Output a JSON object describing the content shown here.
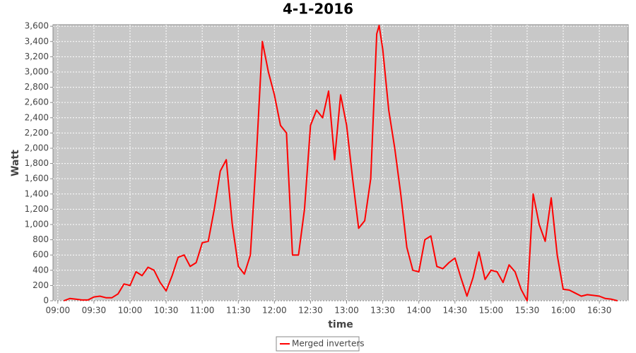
{
  "chart_data": {
    "type": "line",
    "title": "4-1-2016",
    "x_label": "time",
    "y_label": "Watt",
    "x": [
      "09:05",
      "09:10",
      "09:15",
      "09:20",
      "09:25",
      "09:30",
      "09:35",
      "09:40",
      "09:45",
      "09:50",
      "09:55",
      "10:00",
      "10:05",
      "10:10",
      "10:15",
      "10:20",
      "10:25",
      "10:30",
      "10:35",
      "10:40",
      "10:45",
      "10:50",
      "10:55",
      "11:00",
      "11:05",
      "11:10",
      "11:15",
      "11:20",
      "11:25",
      "11:30",
      "11:35",
      "11:40",
      "11:45",
      "11:50",
      "11:55",
      "12:00",
      "12:05",
      "12:10",
      "12:15",
      "12:20",
      "12:25",
      "12:30",
      "12:35",
      "12:40",
      "12:45",
      "12:50",
      "12:55",
      "13:00",
      "13:05",
      "13:10",
      "13:15",
      "13:20",
      "13:25",
      "13:27",
      "13:30",
      "13:35",
      "13:40",
      "13:45",
      "13:50",
      "13:55",
      "14:00",
      "14:05",
      "14:10",
      "14:15",
      "14:20",
      "14:25",
      "14:30",
      "14:35",
      "14:40",
      "14:45",
      "14:50",
      "14:55",
      "15:00",
      "15:05",
      "15:10",
      "15:15",
      "15:20",
      "15:25",
      "15:30",
      "15:35",
      "15:40",
      "15:45",
      "15:50",
      "15:55",
      "16:00",
      "16:05",
      "16:10",
      "16:15",
      "16:20",
      "16:25",
      "16:30",
      "16:35",
      "16:40",
      "16:45"
    ],
    "series": [
      {
        "name": "Merged inverters",
        "color": "#ff0000",
        "values": [
          0,
          30,
          20,
          10,
          10,
          50,
          60,
          40,
          40,
          90,
          220,
          200,
          380,
          330,
          440,
          400,
          240,
          130,
          330,
          570,
          600,
          450,
          500,
          760,
          780,
          1200,
          1700,
          1850,
          1000,
          450,
          350,
          600,
          1900,
          3400,
          3000,
          2700,
          2300,
          2200,
          600,
          600,
          1200,
          2300,
          2500,
          2400,
          2750,
          1850,
          2700,
          2300,
          1600,
          950,
          1050,
          1600,
          3500,
          3610,
          3300,
          2500,
          2000,
          1400,
          700,
          400,
          380,
          800,
          850,
          450,
          420,
          500,
          560,
          300,
          60,
          300,
          640,
          280,
          400,
          380,
          240,
          470,
          380,
          150,
          0,
          1400,
          1000,
          780,
          1350,
          600,
          150,
          140,
          100,
          60,
          80,
          70,
          60,
          30,
          20,
          0
        ]
      }
    ],
    "xlim": [
      "08:56",
      "16:54"
    ],
    "xticks": [
      "09:00",
      "09:30",
      "10:00",
      "10:30",
      "11:00",
      "11:30",
      "12:00",
      "12:30",
      "13:00",
      "13:30",
      "14:00",
      "14:30",
      "15:00",
      "15:30",
      "16:00",
      "16:30"
    ],
    "ylim": [
      0,
      3620
    ],
    "yticks": [
      0,
      200,
      400,
      600,
      800,
      {
        "value": 1000,
        "label": "1,000"
      },
      {
        "value": 1200,
        "label": "1,200"
      },
      {
        "value": 1400,
        "label": "1,400"
      },
      {
        "value": 1600,
        "label": "1,600"
      },
      {
        "value": 1800,
        "label": "1,800"
      },
      {
        "value": 2000,
        "label": "2,000"
      },
      {
        "value": 2200,
        "label": "2,200"
      },
      {
        "value": 2400,
        "label": "2,400"
      },
      {
        "value": 2600,
        "label": "2,600"
      },
      {
        "value": 2800,
        "label": "2,800"
      },
      {
        "value": 3000,
        "label": "3,000"
      },
      {
        "value": 3200,
        "label": "3,200"
      },
      {
        "value": 3400,
        "label": "3,400"
      },
      {
        "value": 3600,
        "label": "3,600"
      }
    ],
    "grid": true
  }
}
